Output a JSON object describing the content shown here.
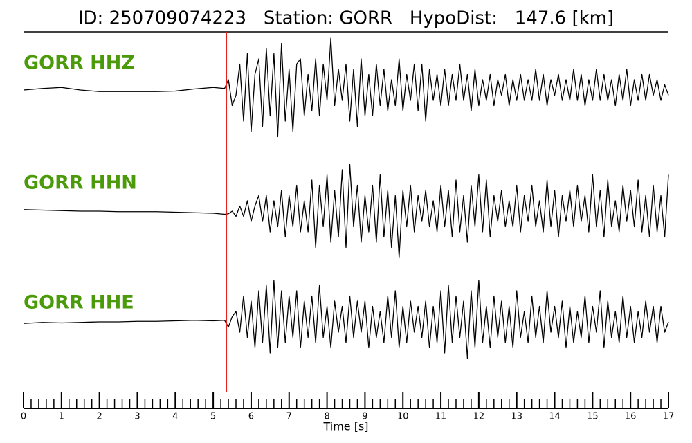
{
  "chart_data": {
    "type": "line",
    "title": "ID: 250709074223   Station: GORR   HypoDist:   147.6 [km]",
    "x_label": "Time [s]",
    "xlim": [
      0,
      17
    ],
    "xticks": [
      0,
      1,
      2,
      3,
      4,
      5,
      6,
      7,
      8,
      9,
      10,
      11,
      12,
      13,
      14,
      15,
      16,
      17
    ],
    "xminorticks": [
      0.2,
      0.4,
      0.6,
      0.8,
      1.2,
      1.4,
      1.6,
      1.8,
      2.2,
      2.4,
      2.6,
      2.8,
      3.2,
      3.4,
      3.6,
      3.8,
      4.2,
      4.4,
      4.6,
      4.8,
      5.2,
      5.4,
      5.6,
      5.8,
      6.2,
      6.4,
      6.6,
      6.8,
      7.2,
      7.4,
      7.6,
      7.8,
      8.2,
      8.4,
      8.6,
      8.8,
      9.2,
      9.4,
      9.6,
      9.8,
      10.2,
      10.4,
      10.6,
      10.8,
      11.2,
      11.4,
      11.6,
      11.8,
      12.2,
      12.4,
      12.6,
      12.8,
      13.2,
      13.4,
      13.6,
      13.8,
      14.2,
      14.4,
      14.6,
      14.8,
      15.2,
      15.4,
      15.6,
      15.8,
      16.2,
      16.4,
      16.6,
      16.8
    ],
    "pick": {
      "time": 5.35,
      "color": "#e8201c"
    },
    "label_color": "#4a9a0a",
    "x": [
      0,
      0.5,
      1,
      1.5,
      2,
      2.5,
      3,
      3.5,
      4,
      4.5,
      5,
      5.3,
      5.4,
      5.5,
      5.6,
      5.7,
      5.8,
      5.9,
      6.0,
      6.1,
      6.2,
      6.3,
      6.4,
      6.5,
      6.6,
      6.7,
      6.8,
      6.9,
      7.0,
      7.1,
      7.2,
      7.3,
      7.4,
      7.5,
      7.6,
      7.7,
      7.8,
      7.9,
      8.0,
      8.1,
      8.2,
      8.3,
      8.4,
      8.5,
      8.6,
      8.7,
      8.8,
      8.9,
      9.0,
      9.1,
      9.2,
      9.3,
      9.4,
      9.5,
      9.6,
      9.7,
      9.8,
      9.9,
      10.0,
      10.1,
      10.2,
      10.3,
      10.4,
      10.5,
      10.6,
      10.7,
      10.8,
      10.9,
      11.0,
      11.1,
      11.2,
      11.3,
      11.4,
      11.5,
      11.6,
      11.7,
      11.8,
      11.9,
      12.0,
      12.1,
      12.2,
      12.3,
      12.4,
      12.5,
      12.6,
      12.7,
      12.8,
      12.9,
      13.0,
      13.1,
      13.2,
      13.3,
      13.4,
      13.5,
      13.6,
      13.7,
      13.8,
      13.9,
      14.0,
      14.1,
      14.2,
      14.3,
      14.4,
      14.5,
      14.6,
      14.7,
      14.8,
      14.9,
      15.0,
      15.1,
      15.2,
      15.3,
      15.4,
      15.5,
      15.6,
      15.7,
      15.8,
      15.9,
      16.0,
      16.1,
      16.2,
      16.3,
      16.4,
      16.5,
      16.6,
      16.7,
      16.8,
      16.9,
      17.0
    ],
    "series": [
      {
        "name": "GORR HHZ",
        "color": "#000000",
        "values": [
          0.0,
          0.03,
          0.05,
          0.0,
          -0.03,
          -0.03,
          -0.03,
          -0.03,
          -0.02,
          0.02,
          0.05,
          0.03,
          0.2,
          -0.3,
          -0.1,
          0.5,
          -0.6,
          0.7,
          -0.8,
          0.3,
          0.6,
          -0.7,
          0.8,
          -0.5,
          0.7,
          -0.9,
          0.9,
          -0.6,
          0.4,
          -0.8,
          0.5,
          0.6,
          -0.5,
          0.3,
          -0.4,
          0.6,
          -0.5,
          0.5,
          -0.2,
          1.0,
          -0.3,
          0.4,
          -0.2,
          0.5,
          -0.6,
          0.4,
          -0.7,
          0.6,
          -0.5,
          0.3,
          -0.5,
          0.5,
          -0.3,
          0.4,
          -0.4,
          0.2,
          -0.3,
          0.6,
          -0.4,
          0.3,
          -0.2,
          0.5,
          -0.4,
          0.5,
          -0.6,
          0.4,
          -0.2,
          0.3,
          -0.3,
          0.4,
          -0.3,
          0.3,
          -0.2,
          0.5,
          -0.2,
          0.3,
          -0.4,
          0.4,
          -0.3,
          0.2,
          -0.2,
          0.3,
          -0.3,
          0.2,
          -0.1,
          0.3,
          -0.3,
          0.2,
          -0.2,
          0.3,
          -0.2,
          0.2,
          -0.2,
          0.4,
          -0.2,
          0.3,
          -0.3,
          0.2,
          -0.1,
          0.3,
          -0.2,
          0.2,
          -0.2,
          0.4,
          -0.2,
          0.3,
          -0.3,
          0.2,
          -0.2,
          0.4,
          -0.2,
          0.3,
          -0.2,
          0.2,
          -0.3,
          0.3,
          -0.2,
          0.4,
          -0.3,
          0.2,
          -0.2,
          0.3,
          -0.2,
          0.3,
          -0.1,
          0.2,
          -0.2,
          0.1,
          -0.1
        ]
      },
      {
        "name": "GORR HHN",
        "color": "#000000",
        "values": [
          0.03,
          0.02,
          0.01,
          0.0,
          0.0,
          -0.01,
          -0.01,
          -0.01,
          -0.02,
          -0.03,
          -0.04,
          -0.06,
          -0.05,
          0.0,
          -0.1,
          0.1,
          -0.1,
          0.2,
          -0.2,
          0.1,
          0.3,
          -0.2,
          0.3,
          -0.4,
          0.2,
          -0.3,
          0.4,
          -0.5,
          0.3,
          -0.3,
          0.5,
          -0.4,
          0.2,
          -0.4,
          0.6,
          -0.7,
          0.5,
          -0.3,
          0.7,
          -0.6,
          0.4,
          -0.5,
          0.8,
          -0.7,
          0.9,
          -0.3,
          0.5,
          -0.6,
          0.3,
          -0.4,
          0.5,
          -0.6,
          0.7,
          -0.5,
          0.4,
          -0.7,
          0.3,
          -0.9,
          0.4,
          -0.3,
          0.5,
          -0.4,
          0.3,
          -0.2,
          0.4,
          -0.3,
          0.2,
          -0.4,
          0.5,
          -0.3,
          0.4,
          -0.5,
          0.6,
          -0.4,
          0.3,
          -0.6,
          0.5,
          -0.3,
          0.7,
          -0.4,
          0.6,
          -0.5,
          0.3,
          -0.2,
          0.4,
          -0.3,
          0.2,
          -0.3,
          0.5,
          -0.4,
          0.3,
          -0.2,
          0.5,
          -0.3,
          0.2,
          -0.4,
          0.6,
          -0.3,
          0.4,
          -0.5,
          0.3,
          -0.2,
          0.4,
          -0.3,
          0.5,
          -0.2,
          0.3,
          -0.4,
          0.7,
          -0.3,
          0.4,
          -0.5,
          0.6,
          -0.3,
          0.2,
          -0.4,
          0.5,
          -0.2,
          0.4,
          -0.3,
          0.6,
          -0.4,
          0.3,
          -0.5,
          0.5,
          -0.4,
          0.3,
          -0.5,
          0.7
        ]
      },
      {
        "name": "GORR HHE",
        "color": "#000000",
        "values": [
          -0.03,
          -0.01,
          -0.02,
          -0.01,
          0.0,
          0.0,
          0.01,
          0.01,
          0.02,
          0.03,
          0.02,
          0.03,
          -0.1,
          0.1,
          0.2,
          -0.2,
          0.5,
          -0.3,
          0.4,
          -0.5,
          0.6,
          -0.4,
          0.7,
          -0.6,
          0.8,
          -0.5,
          0.6,
          -0.4,
          0.5,
          -0.3,
          0.6,
          -0.5,
          0.4,
          -0.3,
          0.5,
          -0.4,
          0.7,
          -0.3,
          0.3,
          -0.5,
          0.4,
          -0.2,
          0.3,
          -0.4,
          0.5,
          -0.3,
          0.4,
          -0.2,
          0.4,
          -0.5,
          0.3,
          -0.3,
          0.2,
          -0.4,
          0.5,
          -0.3,
          0.6,
          -0.5,
          0.3,
          -0.4,
          0.4,
          -0.2,
          0.3,
          -0.3,
          0.4,
          -0.5,
          0.3,
          -0.4,
          0.6,
          -0.6,
          0.7,
          -0.4,
          0.5,
          -0.3,
          0.4,
          -0.7,
          0.6,
          -0.5,
          0.8,
          -0.4,
          0.3,
          -0.5,
          0.5,
          -0.3,
          0.4,
          -0.4,
          0.3,
          -0.5,
          0.6,
          -0.3,
          0.2,
          -0.4,
          0.5,
          -0.3,
          0.3,
          -0.4,
          0.6,
          -0.2,
          0.3,
          -0.3,
          0.4,
          -0.5,
          0.3,
          -0.4,
          0.2,
          -0.3,
          0.5,
          -0.4,
          0.3,
          -0.2,
          0.6,
          -0.5,
          0.4,
          -0.3,
          0.2,
          -0.4,
          0.5,
          -0.3,
          0.3,
          -0.4,
          0.2,
          -0.3,
          0.4,
          -0.2,
          0.3,
          -0.4,
          0.3,
          -0.2,
          0.0
        ]
      }
    ]
  }
}
